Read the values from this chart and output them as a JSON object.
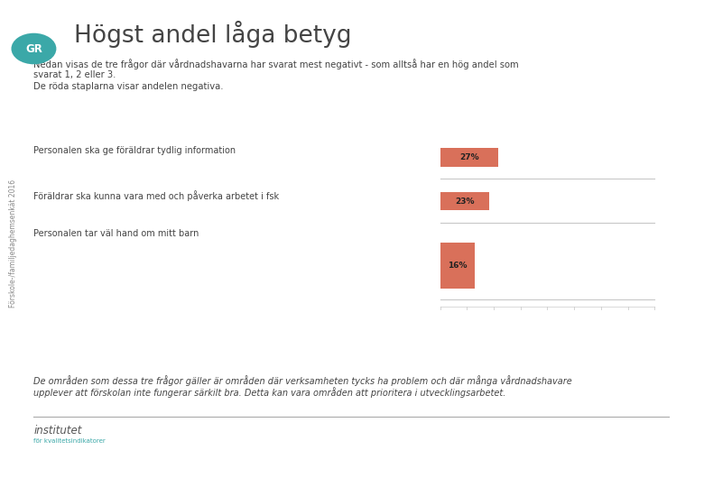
{
  "title": "Högst andel låga betyg",
  "sidebar_text": "Förskole-/familjedaghemsenkät 2016",
  "subtitle_line1": "Nedan visas de tre frågor där vårdnadshavarna har svarat mest negativt - som alltså har en hög andel som",
  "subtitle_line2": "svarat 1, 2 eller 3.",
  "subtitle_line3": "De röda staplarna visar andelen negativa.",
  "questions": [
    "Personalen ska ge föräldrar tydlig information",
    "Föräldrar ska kunna vara med och påverka arbetet i fsk",
    "Personalen tar väl hand om mitt barn"
  ],
  "values": [
    27,
    23,
    16
  ],
  "bar_color": "#D9705A",
  "max_value": 100,
  "footer_italic": "De områden som dessa tre frågor gäller är områden där verksamheten tycks ha problem och där många vårdnadshavare\nupplever att förskolan inte fungerar särkilt bra. Detta kan vara områden att prioritera i utvecklingsarbetet.",
  "background_color": "#FFFFFF",
  "gr_circle_color": "#3BA8A8",
  "text_color": "#444444",
  "light_gray": "#C8C8C8",
  "sidebar_text_color": "#888888",
  "footer_line_color": "#999999",
  "institutet_color": "#555555",
  "kvalitet_color": "#3BA8A8"
}
